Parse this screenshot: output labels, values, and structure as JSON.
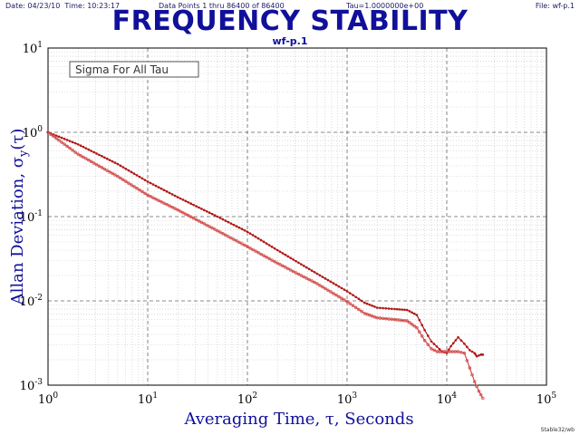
{
  "header": {
    "date": "Date: 04/23/10",
    "time": "Time: 10:23:17",
    "points": "Data Points 1 thru 86400 of 86400",
    "tau": "Tau=1.0000000e+00",
    "file": "File: wf-p.1"
  },
  "title": "FREQUENCY STABILITY",
  "subtitle": "wf-p.1",
  "footer": "Stable32/wb",
  "legend_label": "Sigma For All Tau",
  "chart_data": {
    "type": "line",
    "xscale": "log",
    "yscale": "log",
    "xlim": [
      1,
      100000
    ],
    "ylim": [
      0.001,
      10
    ],
    "xlabel": "Averaging Time, τ, Seconds",
    "ylabel": "Allan Deviation, σ",
    "ylabel_sub": "y",
    "ylabel_suffix": "(τ)",
    "x_ticks": [
      {
        "base": "10",
        "exp": "0"
      },
      {
        "base": "10",
        "exp": "1"
      },
      {
        "base": "10",
        "exp": "2"
      },
      {
        "base": "10",
        "exp": "3"
      },
      {
        "base": "10",
        "exp": "4"
      },
      {
        "base": "10",
        "exp": "5"
      }
    ],
    "y_ticks": [
      {
        "base": "10",
        "exp": "-3"
      },
      {
        "base": "10",
        "exp": "-2"
      },
      {
        "base": "10",
        "exp": "-1"
      },
      {
        "base": "10",
        "exp": "0"
      },
      {
        "base": "10",
        "exp": "1"
      }
    ],
    "grid": true,
    "series": [
      {
        "color": "#b01818",
        "marker": "dot",
        "points": [
          [
            1,
            1.0
          ],
          [
            2,
            0.72
          ],
          [
            5,
            0.42
          ],
          [
            10,
            0.26
          ],
          [
            20,
            0.17
          ],
          [
            50,
            0.1
          ],
          [
            100,
            0.066
          ],
          [
            200,
            0.04
          ],
          [
            500,
            0.021
          ],
          [
            1000,
            0.013
          ],
          [
            1500,
            0.0095
          ],
          [
            2000,
            0.0083
          ],
          [
            3000,
            0.008
          ],
          [
            4000,
            0.0078
          ],
          [
            5000,
            0.0068
          ],
          [
            6000,
            0.0045
          ],
          [
            7000,
            0.0033
          ],
          [
            9000,
            0.0025
          ],
          [
            10000,
            0.0024
          ],
          [
            11000,
            0.0029
          ],
          [
            13000,
            0.0037
          ],
          [
            15000,
            0.0031
          ],
          [
            17000,
            0.0026
          ],
          [
            19000,
            0.0024
          ],
          [
            20000,
            0.0022
          ],
          [
            22000,
            0.0023
          ],
          [
            23000,
            0.0023
          ]
        ]
      },
      {
        "color": "#d24a4a",
        "marker": "circle",
        "points": [
          [
            1,
            1.0
          ],
          [
            2,
            0.55
          ],
          [
            5,
            0.3
          ],
          [
            10,
            0.18
          ],
          [
            20,
            0.12
          ],
          [
            50,
            0.068
          ],
          [
            100,
            0.044
          ],
          [
            200,
            0.028
          ],
          [
            500,
            0.016
          ],
          [
            1000,
            0.0098
          ],
          [
            1500,
            0.0071
          ],
          [
            2000,
            0.0063
          ],
          [
            3000,
            0.006
          ],
          [
            4000,
            0.0058
          ],
          [
            5000,
            0.0048
          ],
          [
            6000,
            0.0034
          ],
          [
            7000,
            0.0027
          ],
          [
            8000,
            0.0025
          ],
          [
            10000,
            0.0025
          ],
          [
            13000,
            0.0025
          ],
          [
            15000,
            0.0024
          ],
          [
            17000,
            0.0016
          ],
          [
            19000,
            0.0011
          ],
          [
            21000,
            0.00085
          ],
          [
            23000,
            0.0007
          ]
        ]
      }
    ]
  }
}
